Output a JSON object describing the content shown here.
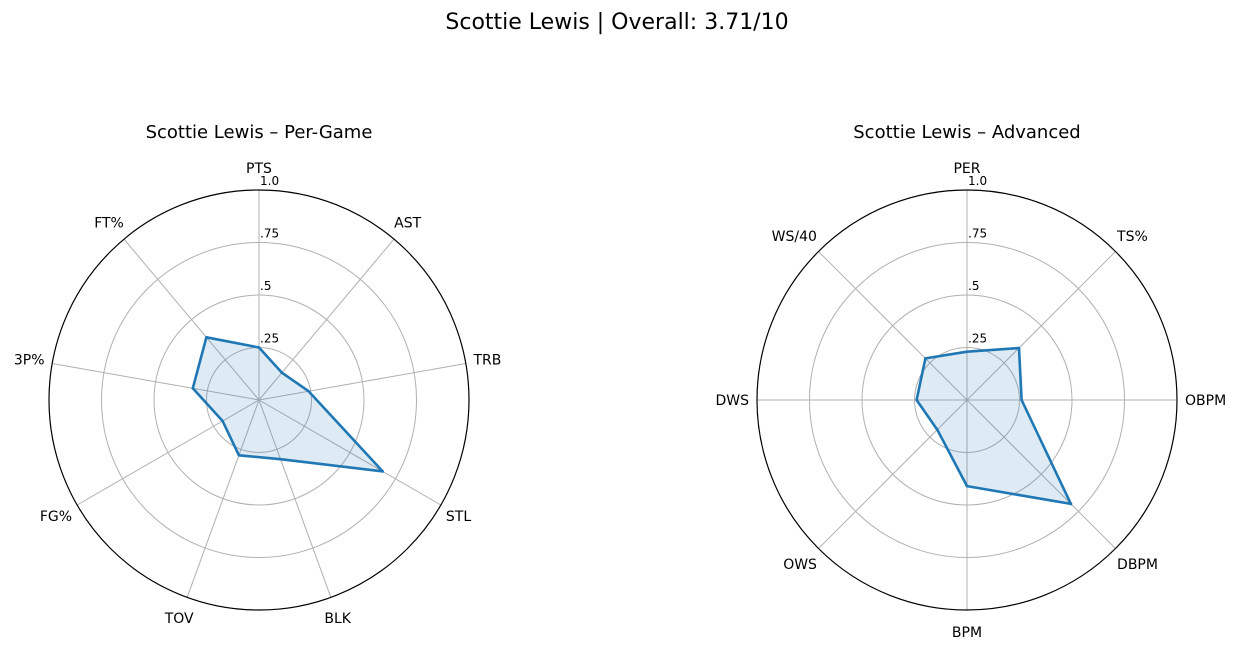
{
  "suptitle": "Scottie Lewis | Overall: 3.71/10",
  "chart_data": [
    {
      "type": "radar",
      "title": "Scottie Lewis – Per-Game",
      "categories": [
        "PTS",
        "AST",
        "TRB",
        "STL",
        "BLK",
        "TOV",
        "FG%",
        "3P%",
        "FT%"
      ],
      "values": [
        0.25,
        0.17,
        0.24,
        0.68,
        0.3,
        0.28,
        0.2,
        0.32,
        0.39
      ],
      "rlim": [
        0,
        1.0
      ],
      "rticks": [
        0.25,
        0.5,
        0.75,
        1.0
      ],
      "rtick_labels": [
        ".25",
        ".5",
        ".75",
        "1.0"
      ],
      "color": "#1f77b4",
      "fill_color": "#1f77b4"
    },
    {
      "type": "radar",
      "title": "Scottie Lewis – Advanced",
      "categories": [
        "PER",
        "TS%",
        "OBPM",
        "DBPM",
        "BPM",
        "OWS",
        "DWS",
        "WS/40"
      ],
      "values": [
        0.23,
        0.35,
        0.26,
        0.7,
        0.41,
        0.2,
        0.24,
        0.28
      ],
      "rlim": [
        0,
        1.0
      ],
      "rticks": [
        0.25,
        0.5,
        0.75,
        1.0
      ],
      "rtick_labels": [
        ".25",
        ".5",
        ".75",
        "1.0"
      ],
      "color": "#1f77b4",
      "fill_color": "#1f77b4"
    }
  ]
}
